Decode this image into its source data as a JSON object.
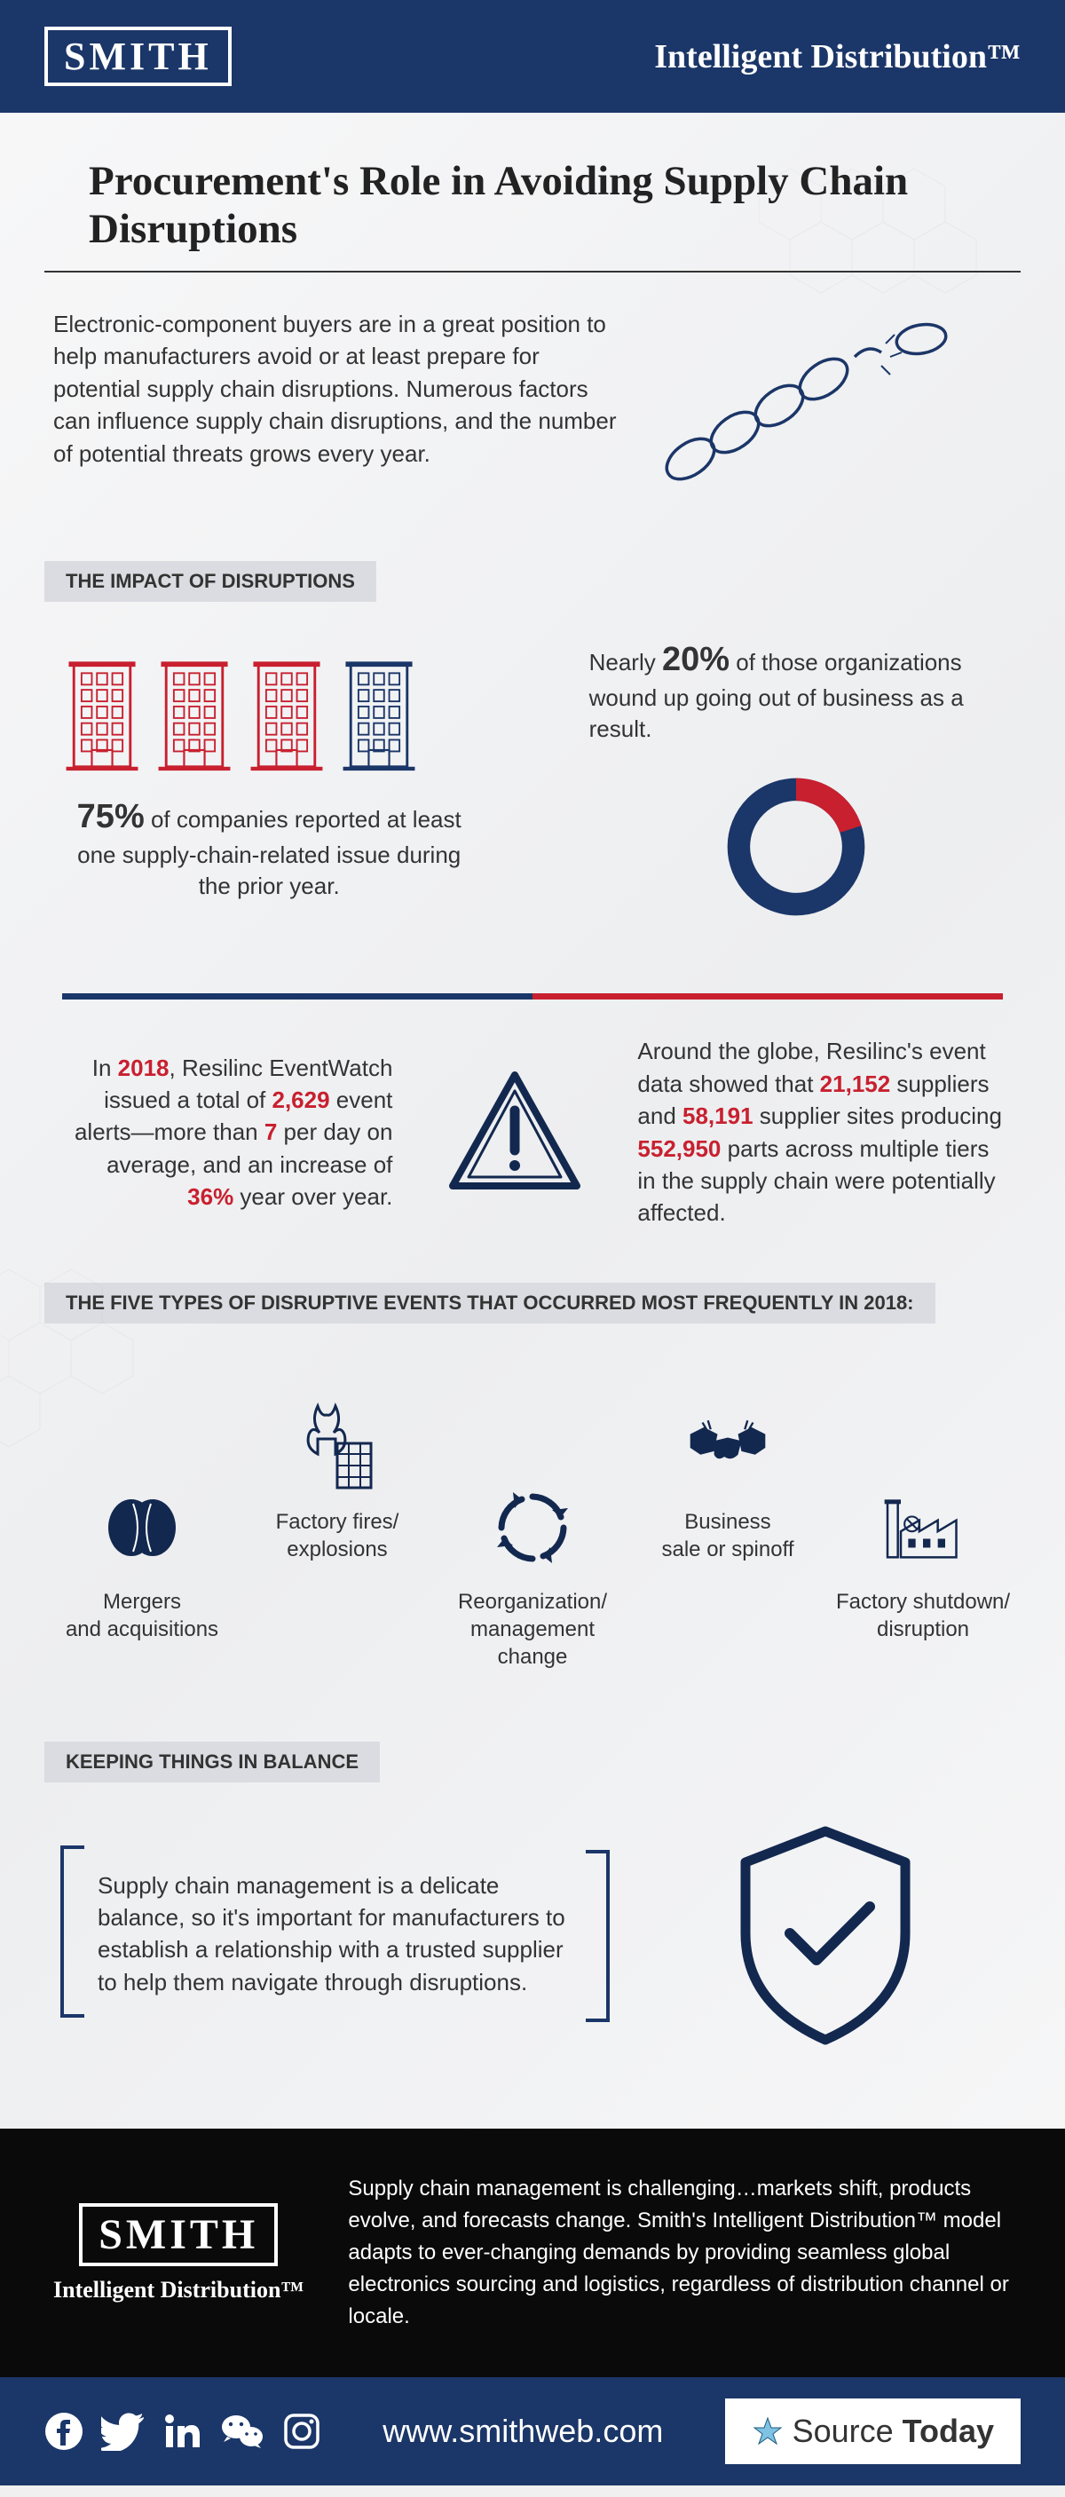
{
  "colors": {
    "navy": "#1b3668",
    "red": "#c8202f",
    "darknavy": "#13284f",
    "black": "#0a0a0a",
    "white": "#ffffff",
    "text": "#333333",
    "heading_bg": "#dadce1"
  },
  "header": {
    "logo": "SMITH",
    "tagline": "Intelligent Distribution™"
  },
  "title": "Procurement's Role in Avoiding Supply Chain Disruptions",
  "intro": "Electronic-component buyers are in a great position to help manufacturers avoid or at least prepare for potential supply chain disruptions. Numerous factors can influence supply chain disruptions, and the number of potential threats grows every year.",
  "impact": {
    "heading": "THE IMPACT OF DISRUPTIONS",
    "buildings": {
      "total": 4,
      "red_count": 3,
      "red_color": "#c8202f",
      "blue_color": "#1b3668"
    },
    "stat75_pct": "75%",
    "stat75_text": " of companies reported at least one supply-chain-related issue during the prior year.",
    "stat20_pre": "Nearly ",
    "stat20_pct": "20%",
    "stat20_text": " of those organizations wound up going out of business as a result.",
    "donut": {
      "pct_red": 20,
      "pct_blue": 80,
      "red": "#c8202f",
      "blue": "#1b3668",
      "thickness": 24
    }
  },
  "alerts": {
    "left_pre": "In ",
    "year": "2018",
    "left_mid": ", Resilinc EventWatch issued a total of ",
    "count": "2,629",
    "left_mid2": " event alerts—more than ",
    "per_day": "7",
    "left_mid3": " per day on average, and an increase of  ",
    "yoy": "36%",
    "left_end": " year over year.",
    "right_pre": "Around the globe, Resilinc's event data showed that ",
    "suppliers": "21,152",
    "right_mid1": " suppliers and ",
    "sites": "58,191",
    "right_mid2": " supplier sites producing ",
    "parts": "552,950",
    "right_end": " parts across multiple tiers in the supply chain were potentially affected."
  },
  "events": {
    "heading": "THE FIVE TYPES OF DISRUPTIVE EVENTS THAT OCCURRED MOST FREQUENTLY IN 2018:",
    "items": [
      {
        "label": "Mergers\nand acquisitions",
        "icon": "merge"
      },
      {
        "label": "Factory fires/\nexplosions",
        "icon": "fire"
      },
      {
        "label": "Reorganization/\nmanagement change",
        "icon": "cycle"
      },
      {
        "label": "Business\nsale or spinoff",
        "icon": "handshake"
      },
      {
        "label": "Factory shutdown/\ndisruption",
        "icon": "factory"
      }
    ]
  },
  "balance": {
    "heading": "KEEPING THINGS IN BALANCE",
    "text": "Supply chain management is a delicate balance, so it's important for manufacturers to establish a relationship with a trusted supplier to help them navigate through disruptions."
  },
  "footer": {
    "logo": "SMITH",
    "tagline": "Intelligent Distribution™",
    "text": "Supply chain management is challenging…markets shift, products evolve, and forecasts change. Smith's Intelligent Distribution™ model adapts to ever-changing demands by providing seamless global electronics sourcing and logistics, regardless of distribution channel or locale.",
    "website": "www.smithweb.com",
    "source_brand_1": "Source",
    "source_brand_2": "Today"
  }
}
